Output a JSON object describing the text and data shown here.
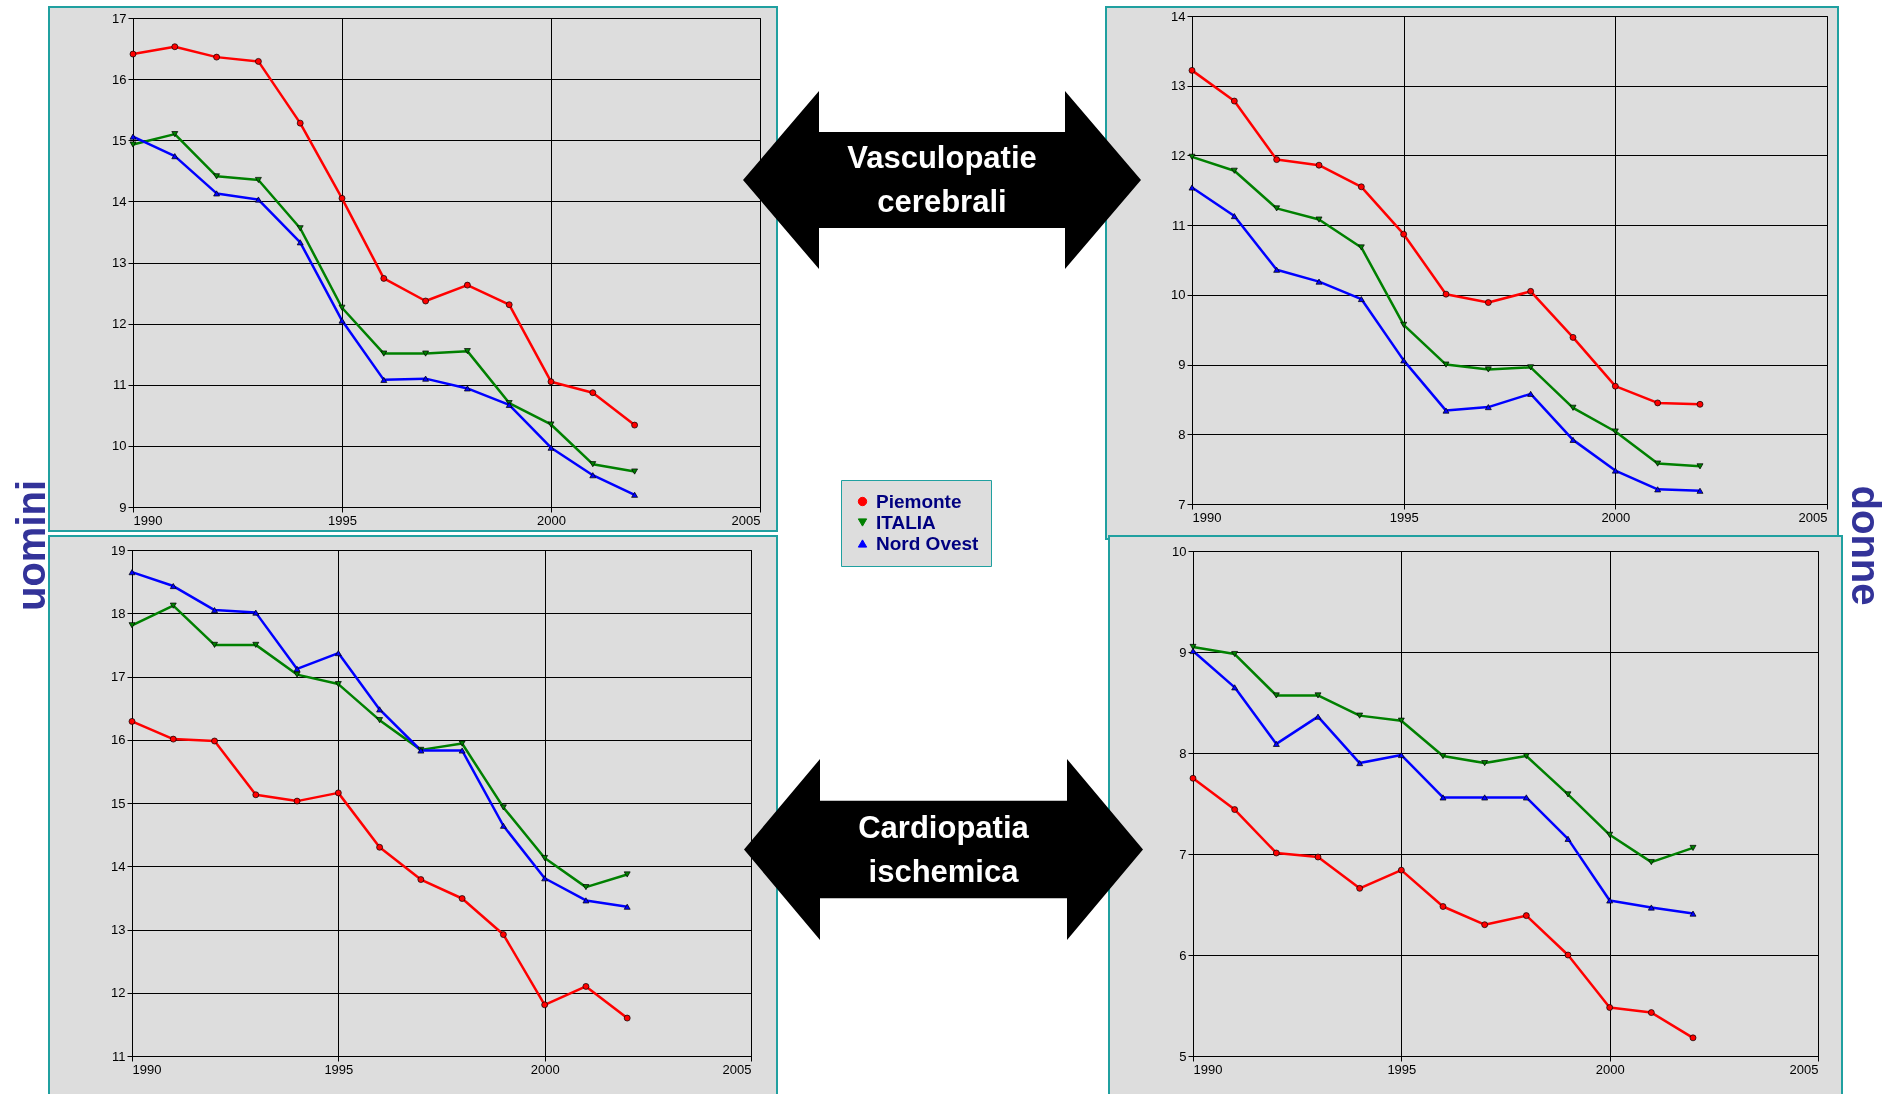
{
  "chart_data": [
    {
      "type": "line",
      "x": [
        1990,
        1991,
        1992,
        1993,
        1994,
        1995,
        1996,
        1997,
        1998,
        1999,
        2000,
        2001,
        2002
      ],
      "xlim": [
        1990,
        2005
      ],
      "xticks": [
        1990,
        1995,
        2000,
        2005
      ],
      "ylim": [
        9,
        17
      ],
      "yticks": [
        9,
        10,
        11,
        12,
        13,
        14,
        15,
        16,
        17
      ],
      "grid": true,
      "legend": "right",
      "annotations": [
        "Vasculopatie cerebrali",
        "uomini"
      ],
      "series": [
        {
          "name": "Piemonte",
          "color": "#ff0000",
          "marker": "circle",
          "values": [
            16.41,
            16.53,
            16.36,
            16.29,
            15.28,
            14.05,
            12.74,
            12.37,
            12.63,
            12.31,
            11.05,
            10.87,
            10.34
          ]
        },
        {
          "name": "ITALIA",
          "color": "#008000",
          "marker": "triangle-down",
          "values": [
            14.93,
            15.1,
            14.41,
            14.35,
            13.56,
            12.26,
            11.51,
            11.51,
            11.55,
            10.7,
            10.35,
            9.7,
            9.58
          ]
        },
        {
          "name": "Nord Ovest",
          "color": "#0000ff",
          "marker": "triangle-up",
          "values": [
            15.06,
            14.74,
            14.13,
            14.03,
            13.33,
            12.05,
            11.08,
            11.1,
            10.94,
            10.67,
            9.97,
            9.52,
            9.2
          ]
        }
      ]
    },
    {
      "type": "line",
      "x": [
        1990,
        1991,
        1992,
        1993,
        1994,
        1995,
        1996,
        1997,
        1998,
        1999,
        2000,
        2001,
        2002
      ],
      "xlim": [
        1990,
        2005
      ],
      "xticks": [
        1990,
        1995,
        2000,
        2005
      ],
      "ylim": [
        7,
        14
      ],
      "yticks": [
        7,
        8,
        9,
        10,
        11,
        12,
        13,
        14
      ],
      "grid": true,
      "annotations": [
        "donne"
      ],
      "series": [
        {
          "color": "#ff0000",
          "marker": "circle",
          "values": [
            13.22,
            12.78,
            11.94,
            11.86,
            11.55,
            10.87,
            10.01,
            9.89,
            10.05,
            9.39,
            8.69,
            8.45,
            8.43
          ]
        },
        {
          "color": "#008000",
          "marker": "triangle-down",
          "values": [
            11.98,
            11.78,
            11.24,
            11.08,
            10.68,
            9.57,
            9.0,
            8.93,
            8.96,
            8.38,
            8.04,
            7.58,
            7.54
          ]
        },
        {
          "color": "#0000ff",
          "marker": "triangle-up",
          "values": [
            11.54,
            11.13,
            10.36,
            10.19,
            9.94,
            9.06,
            8.34,
            8.39,
            8.58,
            7.92,
            7.48,
            7.21,
            7.19
          ]
        }
      ]
    },
    {
      "type": "line",
      "x": [
        1990,
        1991,
        1992,
        1993,
        1994,
        1995,
        1996,
        1997,
        1998,
        1999,
        2000,
        2001,
        2002
      ],
      "xlim": [
        1990,
        2005
      ],
      "xticks": [
        1990,
        1995,
        2000,
        2005
      ],
      "ylim": [
        11,
        19
      ],
      "yticks": [
        11,
        12,
        13,
        14,
        15,
        16,
        17,
        18,
        19
      ],
      "grid": true,
      "annotations": [
        "Cardiopatia ischemica"
      ],
      "series": [
        {
          "color": "#ff0000",
          "marker": "circle",
          "values": [
            16.29,
            16.01,
            15.98,
            15.13,
            15.03,
            15.16,
            14.3,
            13.79,
            13.49,
            12.92,
            11.81,
            12.1,
            11.6
          ]
        },
        {
          "color": "#008000",
          "marker": "triangle-down",
          "values": [
            17.81,
            18.12,
            17.5,
            17.5,
            17.03,
            16.88,
            16.31,
            15.84,
            15.94,
            14.93,
            14.13,
            13.67,
            13.87
          ]
        },
        {
          "color": "#0000ff",
          "marker": "triangle-up",
          "values": [
            18.65,
            18.43,
            18.05,
            18.01,
            17.12,
            17.37,
            16.48,
            15.83,
            15.83,
            14.64,
            13.81,
            13.46,
            13.36
          ]
        }
      ]
    },
    {
      "type": "line",
      "x": [
        1990,
        1991,
        1992,
        1993,
        1994,
        1995,
        1996,
        1997,
        1998,
        1999,
        2000,
        2001,
        2002
      ],
      "xlim": [
        1990,
        2005
      ],
      "xticks": [
        1990,
        1995,
        2000,
        2005
      ],
      "ylim": [
        5,
        10
      ],
      "yticks": [
        5,
        6,
        7,
        8,
        9,
        10
      ],
      "grid": true,
      "series": [
        {
          "color": "#ff0000",
          "marker": "circle",
          "values": [
            7.75,
            7.44,
            7.01,
            6.97,
            6.66,
            6.84,
            6.48,
            6.3,
            6.39,
            6.0,
            5.48,
            5.43,
            5.18
          ]
        },
        {
          "color": "#008000",
          "marker": "triangle-down",
          "values": [
            9.05,
            8.98,
            8.57,
            8.57,
            8.37,
            8.32,
            7.97,
            7.9,
            7.97,
            7.59,
            7.19,
            6.92,
            7.06
          ]
        },
        {
          "color": "#0000ff",
          "marker": "triangle-up",
          "values": [
            9.01,
            8.65,
            8.09,
            8.36,
            7.9,
            7.98,
            7.56,
            7.56,
            7.56,
            7.15,
            6.54,
            6.47,
            6.41
          ]
        }
      ]
    }
  ]
}
